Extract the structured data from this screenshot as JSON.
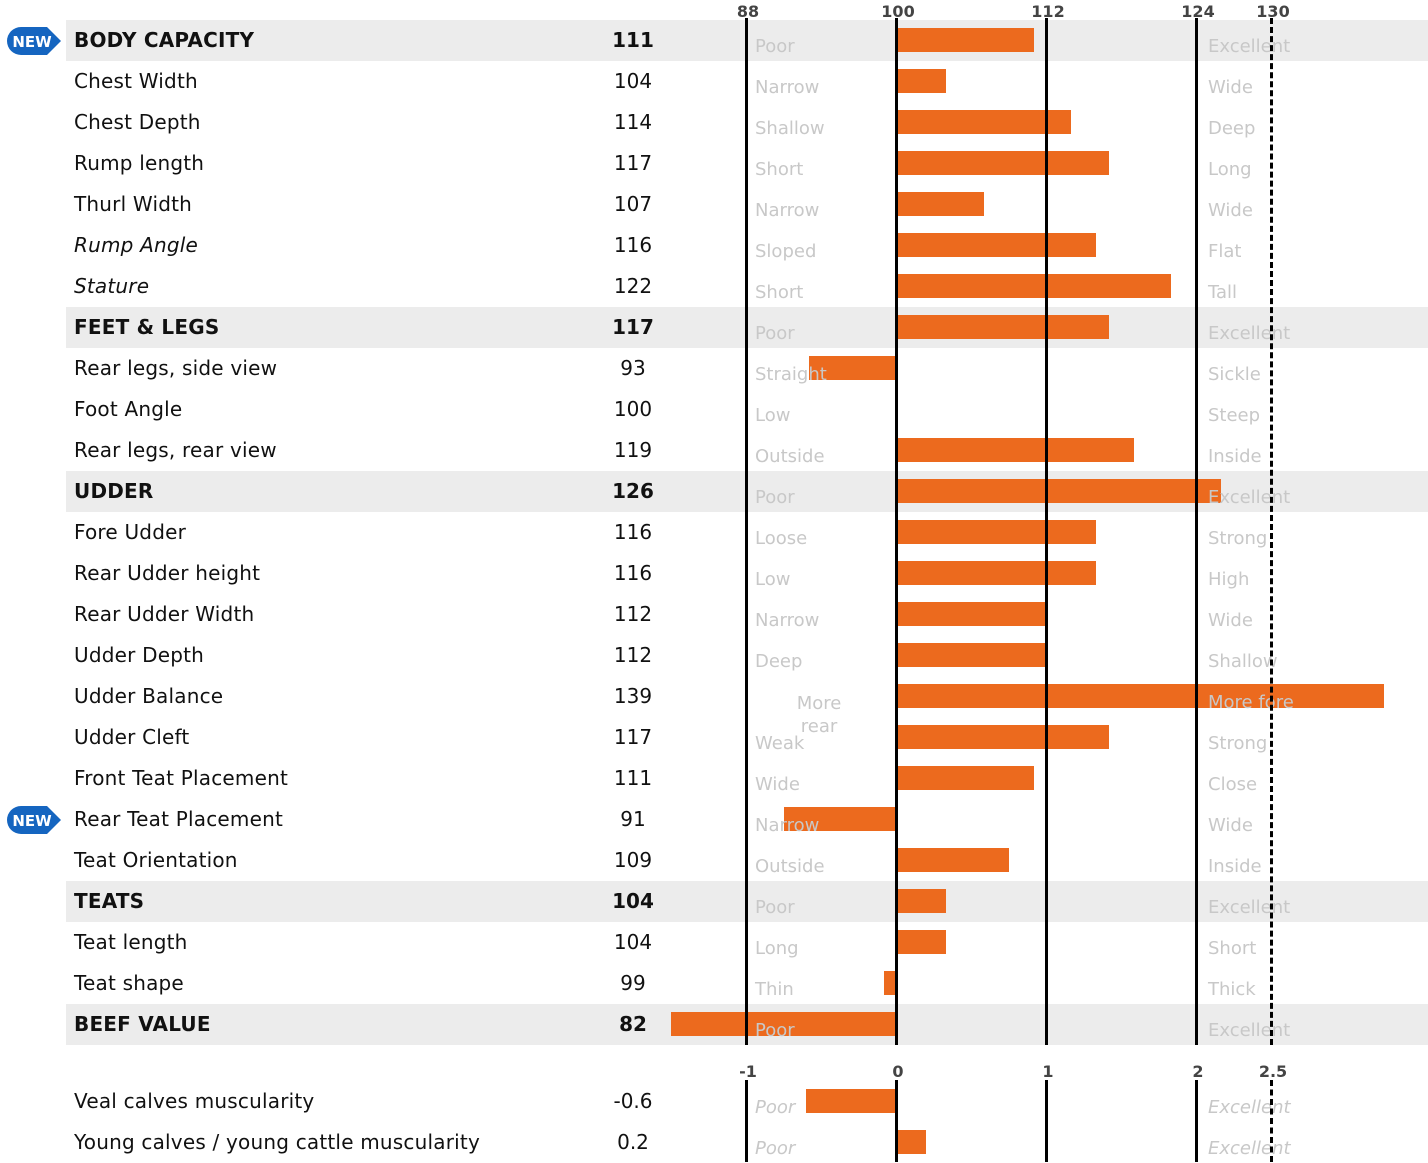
{
  "chart_data": [
    {
      "type": "bar",
      "orientation": "horizontal",
      "axis": {
        "ticks": [
          88,
          100,
          112,
          124,
          130
        ],
        "range": [
          88,
          136
        ],
        "baseline": 100,
        "dashed_tick": 130,
        "solid_lines": [
          88,
          100,
          112,
          124
        ]
      },
      "rows": [
        {
          "label": "BODY CAPACITY",
          "value": 111,
          "low": "Poor",
          "high": "Excellent",
          "style": "heading",
          "band": true,
          "badge": "NEW"
        },
        {
          "label": "Chest Width",
          "value": 104,
          "low": "Narrow",
          "high": "Wide"
        },
        {
          "label": "Chest Depth",
          "value": 114,
          "low": "Shallow",
          "high": "Deep"
        },
        {
          "label": "Rump length",
          "value": 117,
          "low": "Short",
          "high": "Long"
        },
        {
          "label": "Thurl Width",
          "value": 107,
          "low": "Narrow",
          "high": "Wide"
        },
        {
          "label": "Rump Angle",
          "value": 116,
          "low": "Sloped",
          "high": "Flat",
          "style": "italic"
        },
        {
          "label": "Stature",
          "value": 122,
          "low": "Short",
          "high": "Tall",
          "style": "italic"
        },
        {
          "label": "FEET & LEGS",
          "value": 117,
          "low": "Poor",
          "high": "Excellent",
          "style": "heading",
          "band": true
        },
        {
          "label": "Rear legs, side view",
          "value": 93,
          "low": "Straight",
          "high": "Sickle"
        },
        {
          "label": "Foot Angle",
          "value": 100,
          "low": "Low",
          "high": "Steep"
        },
        {
          "label": "Rear legs, rear view",
          "value": 119,
          "low": "Outside",
          "high": "Inside"
        },
        {
          "label": "UDDER",
          "value": 126,
          "low": "Poor",
          "high": "Excellent",
          "style": "heading",
          "band": true
        },
        {
          "label": "Fore Udder",
          "value": 116,
          "low": "Loose",
          "high": "Strong"
        },
        {
          "label": "Rear Udder height",
          "value": 116,
          "low": "Low",
          "high": "High"
        },
        {
          "label": "Rear Udder Width",
          "value": 112,
          "low": "Narrow",
          "high": "Wide"
        },
        {
          "label": "Udder Depth",
          "value": 112,
          "low": "Deep",
          "high": "Shallow"
        },
        {
          "label": "Udder Balance",
          "value": 139,
          "low": "More rear",
          "high": "More fore",
          "low_centered": true
        },
        {
          "label": "Udder Cleft",
          "value": 117,
          "low": "Weak",
          "high": "Strong"
        },
        {
          "label": "Front Teat Placement",
          "value": 111,
          "low": "Wide",
          "high": "Close"
        },
        {
          "label": "Rear Teat Placement",
          "value": 91,
          "low": "Narrow",
          "high": "Wide",
          "badge": "NEW"
        },
        {
          "label": "Teat Orientation",
          "value": 109,
          "low": "Outside",
          "high": "Inside"
        },
        {
          "label": "TEATS",
          "value": 104,
          "low": "Poor",
          "high": "Excellent",
          "style": "heading",
          "band": true
        },
        {
          "label": "Teat length",
          "value": 104,
          "low": "Long",
          "high": "Short"
        },
        {
          "label": "Teat shape",
          "value": 99,
          "low": "Thin",
          "high": "Thick"
        },
        {
          "label": "BEEF VALUE",
          "value": 82,
          "low": "Poor",
          "high": "Excellent",
          "style": "heading",
          "band": true
        }
      ]
    },
    {
      "type": "bar",
      "orientation": "horizontal",
      "axis": {
        "ticks": [
          -1,
          0,
          1,
          2,
          2.5
        ],
        "range": [
          -1,
          3
        ],
        "baseline": 0,
        "dashed_tick": 2.5,
        "solid_lines": [
          -1,
          0,
          1,
          2
        ]
      },
      "rows": [
        {
          "label": "Veal calves muscularity",
          "value": -0.6,
          "low": "Poor",
          "high": "Excellent",
          "low_style": "italic"
        },
        {
          "label": "Young calves / young cattle muscularity",
          "value": 0.2,
          "low": "Poor",
          "high": "Excellent",
          "low_style": "italic"
        }
      ]
    }
  ],
  "colors": {
    "bar": "#ec6a1e",
    "band": "#ececec",
    "scale_text": "#c8c8c8",
    "badge": "#1565c0"
  },
  "badge_icon": "new-badge-icon"
}
